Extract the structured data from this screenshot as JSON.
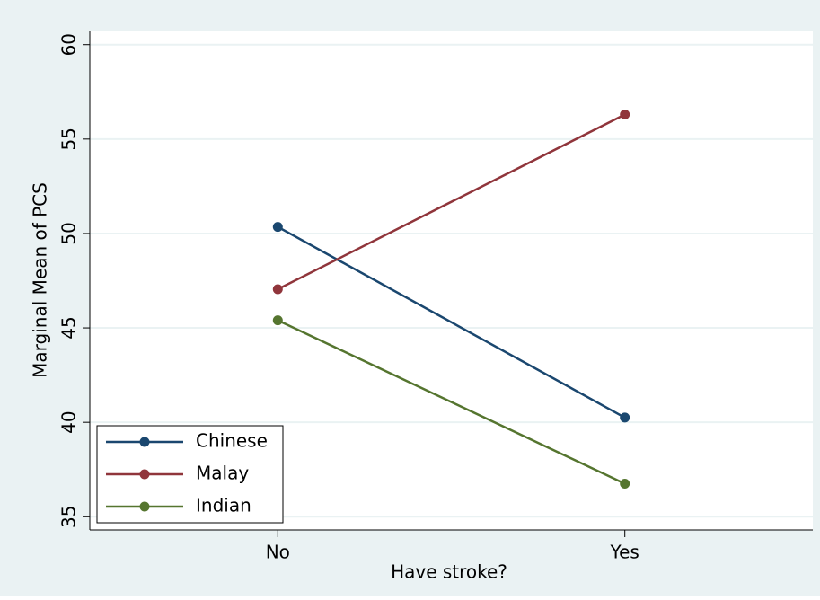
{
  "chart_data": {
    "type": "line",
    "x_label": "Have stroke?",
    "y_label": "Marginal Mean of PCS",
    "categories": [
      "No",
      "Yes"
    ],
    "series": [
      {
        "name": "Chinese",
        "color": "#1a476f",
        "values": [
          50.35,
          40.25
        ]
      },
      {
        "name": "Malay",
        "color": "#90353b",
        "values": [
          47.05,
          56.3
        ]
      },
      {
        "name": "Indian",
        "color": "#55752f",
        "values": [
          45.4,
          36.75
        ]
      }
    ],
    "ylim": [
      34.3,
      60.7
    ],
    "yticks": [
      35,
      40,
      45,
      50,
      55,
      60
    ],
    "grid": true,
    "legend": "lower-left"
  }
}
